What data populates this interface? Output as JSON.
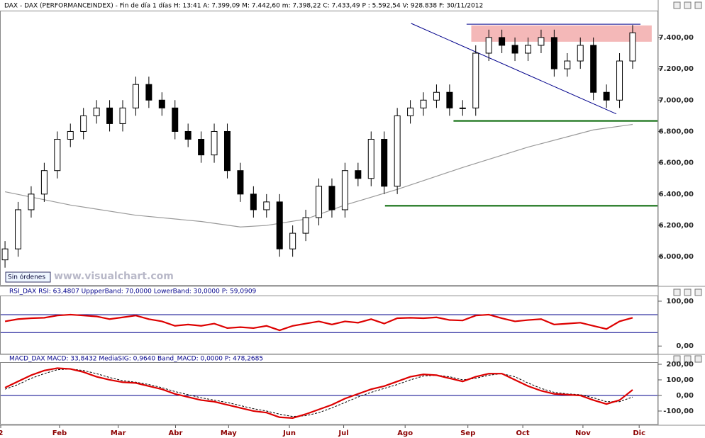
{
  "header": "DAX - DAX (PERFORMANCEINDEX) - Fin de día 1 días  H: 13:41  A: 7.399,09  M: 7.442,60  m: 7.398,22  C: 7.433,49  P : 5.592,54  V: 928.838  F: 30/11/2012",
  "status": "Sin órdenes",
  "watermark": "www.visualchart.com",
  "chart_data": [
    {
      "type": "candlestick",
      "x": [
        0,
        1,
        2,
        3,
        4,
        5,
        6,
        7,
        8,
        9,
        10,
        11,
        12,
        13,
        14,
        15,
        16,
        17,
        18,
        19,
        20,
        21,
        22,
        23,
        24,
        25,
        26,
        27,
        28,
        29,
        30,
        31,
        32,
        33,
        34,
        35,
        36,
        37,
        38,
        39,
        40,
        41,
        42,
        43,
        44,
        45,
        46,
        47,
        48
      ],
      "open": [
        5980,
        6050,
        6300,
        6400,
        6550,
        6750,
        6800,
        6900,
        6950,
        6850,
        6950,
        7100,
        7000,
        6950,
        6800,
        6750,
        6650,
        6800,
        6550,
        6400,
        6300,
        6350,
        6050,
        6150,
        6250,
        6450,
        6300,
        6550,
        6500,
        6750,
        6450,
        6900,
        6950,
        7000,
        7050,
        6950,
        6950,
        7300,
        7400,
        7350,
        7300,
        7350,
        7400,
        7200,
        7250,
        7350,
        7050,
        7000,
        7250
      ],
      "high": [
        6100,
        6350,
        6450,
        6600,
        6800,
        6850,
        6950,
        7000,
        7000,
        7000,
        7150,
        7150,
        7050,
        7000,
        6850,
        6800,
        6850,
        6850,
        6600,
        6450,
        6400,
        6400,
        6200,
        6300,
        6500,
        6500,
        6600,
        6600,
        6800,
        6800,
        6950,
        7000,
        7050,
        7100,
        7100,
        7000,
        7350,
        7450,
        7450,
        7400,
        7400,
        7450,
        7450,
        7300,
        7400,
        7400,
        7100,
        7300,
        7480
      ],
      "low": [
        5930,
        6000,
        6250,
        6350,
        6500,
        6700,
        6750,
        6850,
        6800,
        6800,
        6900,
        6950,
        6900,
        6750,
        6700,
        6600,
        6600,
        6500,
        6350,
        6250,
        6250,
        6000,
        6000,
        6100,
        6200,
        6250,
        6250,
        6450,
        6450,
        6400,
        6400,
        6850,
        6900,
        6950,
        6900,
        6900,
        6900,
        7250,
        7300,
        7250,
        7250,
        7300,
        7150,
        7150,
        7200,
        7000,
        6950,
        6950,
        7200
      ],
      "close": [
        6050,
        6300,
        6400,
        6550,
        6750,
        6800,
        6900,
        6950,
        6850,
        6950,
        7100,
        7000,
        6950,
        6800,
        6750,
        6650,
        6800,
        6550,
        6400,
        6300,
        6350,
        6050,
        6150,
        6250,
        6450,
        6300,
        6550,
        6500,
        6750,
        6450,
        6900,
        6950,
        7000,
        7050,
        6950,
        6950,
        7300,
        7400,
        7350,
        7300,
        7350,
        7400,
        7200,
        7250,
        7350,
        7050,
        7000,
        7250,
        7430
      ],
      "overlay": {
        "color": "#999999",
        "x": [
          0,
          5,
          10,
          15,
          18,
          20,
          23,
          26,
          30,
          35,
          40,
          45,
          48
        ],
        "values": [
          6415,
          6330,
          6265,
          6225,
          6190,
          6200,
          6240,
          6330,
          6430,
          6570,
          6700,
          6810,
          6845
        ]
      },
      "zone": {
        "color": "#f4b8b8",
        "x": [
          35.66,
          49.46
        ],
        "values": [
          7373,
          7477
        ]
      },
      "trendline": {
        "color": "#00008b",
        "x": [
          31.06,
          46.75
        ],
        "values": [
          7490,
          6912
        ]
      },
      "levels": [
        {
          "color": "#00008b",
          "value": 7485,
          "x": [
            35.3,
            48.6
          ]
        },
        {
          "color": "#006400",
          "value": 6867,
          "x": [
            34.3,
            49.9
          ]
        },
        {
          "color": "#006400",
          "value": 6325,
          "x": [
            29.06,
            49.9
          ]
        }
      ],
      "xlim": [
        -0.33,
        49.9
      ],
      "ylim": [
        5820,
        7567
      ],
      "yticks": [
        {
          "value": 6000,
          "label": "6.000,00"
        },
        {
          "value": 6200,
          "label": "6.200,00"
        },
        {
          "value": 6400,
          "label": "6.400,00"
        },
        {
          "value": 6600,
          "label": "6.600,00"
        },
        {
          "value": 6800,
          "label": "6.800,00"
        },
        {
          "value": 7000,
          "label": "7.000,00"
        },
        {
          "value": 7200,
          "label": "7.200,00"
        },
        {
          "value": 7400,
          "label": "7.400,00"
        }
      ]
    },
    {
      "type": "line",
      "title": "RSI_DAX  RSI: 63,4807  UppperBand: 70,0000  LowerBand: 30,0000  P: 59,0909",
      "x": [
        0,
        1,
        2,
        3,
        4,
        5,
        6,
        7,
        8,
        9,
        10,
        11,
        12,
        13,
        14,
        15,
        16,
        17,
        18,
        19,
        20,
        21,
        22,
        23,
        24,
        25,
        26,
        27,
        28,
        29,
        30,
        31,
        32,
        33,
        34,
        35,
        36,
        37,
        38,
        39,
        40,
        41,
        42,
        43,
        44,
        45,
        46,
        47,
        48
      ],
      "series": [
        {
          "color": "#dd0000",
          "values": [
            55,
            60,
            62,
            63,
            68,
            70,
            68,
            66,
            60,
            64,
            68,
            60,
            55,
            45,
            48,
            45,
            50,
            40,
            42,
            40,
            45,
            35,
            45,
            50,
            55,
            48,
            55,
            52,
            60,
            50,
            62,
            63,
            62,
            64,
            58,
            57,
            68,
            70,
            62,
            55,
            58,
            60,
            48,
            50,
            52,
            45,
            38,
            55,
            63
          ]
        }
      ],
      "levels": [
        {
          "color": "#00008b",
          "value": 70
        },
        {
          "color": "#00008b",
          "value": 30
        }
      ],
      "xlim": [
        -0.33,
        49.9
      ],
      "ylim": [
        -17,
        111
      ],
      "yticks": [
        {
          "value": 0,
          "label": "0,00"
        },
        {
          "value": 100,
          "label": "100,00"
        }
      ]
    },
    {
      "type": "line",
      "title": "MACD_DAX  MACD: 33,8432  MediaSIG: 0,9640  Band_MACD: 0,0000  P: 478,2685",
      "x": [
        0,
        1,
        2,
        3,
        4,
        5,
        6,
        7,
        8,
        9,
        10,
        11,
        12,
        13,
        14,
        15,
        16,
        17,
        18,
        19,
        20,
        21,
        22,
        23,
        24,
        25,
        26,
        27,
        28,
        29,
        30,
        31,
        32,
        33,
        34,
        35,
        36,
        37,
        38,
        39,
        40,
        41,
        42,
        43,
        44,
        45,
        46,
        47,
        48
      ],
      "series": [
        {
          "color": "#000000",
          "dashed": true,
          "values": [
            40,
            70,
            110,
            140,
            165,
            170,
            160,
            140,
            115,
            95,
            85,
            70,
            50,
            25,
            5,
            -15,
            -30,
            -45,
            -65,
            -85,
            -100,
            -120,
            -135,
            -130,
            -110,
            -80,
            -45,
            -10,
            20,
            45,
            70,
            100,
            125,
            130,
            120,
            100,
            110,
            130,
            140,
            120,
            80,
            45,
            20,
            10,
            5,
            -15,
            -40,
            -40,
            -10
          ]
        },
        {
          "color": "#dd0000",
          "values": [
            50,
            90,
            130,
            160,
            175,
            170,
            150,
            120,
            100,
            85,
            80,
            60,
            40,
            10,
            -10,
            -30,
            -40,
            -60,
            -80,
            -100,
            -110,
            -140,
            -145,
            -120,
            -90,
            -60,
            -20,
            10,
            40,
            60,
            90,
            120,
            135,
            130,
            110,
            90,
            120,
            140,
            140,
            100,
            60,
            30,
            10,
            5,
            0,
            -30,
            -55,
            -30,
            36
          ]
        }
      ],
      "levels": [
        {
          "color": "#00008b",
          "value": 0
        }
      ],
      "xlim": [
        -0.33,
        49.9
      ],
      "ylim": [
        -182,
        209
      ],
      "yticks": [
        {
          "value": -100,
          "label": "-100,00"
        },
        {
          "value": 0,
          "label": "0,00"
        },
        {
          "value": 100,
          "label": "100,00"
        },
        {
          "value": 200,
          "label": "200,00"
        }
      ],
      "xticks": [
        {
          "value": -0.33,
          "label": "2"
        },
        {
          "value": 4.17,
          "label": "Feb"
        },
        {
          "value": 8.66,
          "label": "Mar"
        },
        {
          "value": 13.04,
          "label": "Abr"
        },
        {
          "value": 17.1,
          "label": "May"
        },
        {
          "value": 21.75,
          "label": "Jun"
        },
        {
          "value": 25.9,
          "label": "Jul"
        },
        {
          "value": 30.6,
          "label": "Ago"
        },
        {
          "value": 35.4,
          "label": "Sep"
        },
        {
          "value": 39.6,
          "label": "Oct"
        },
        {
          "value": 44.2,
          "label": "Nov"
        },
        {
          "value": 48.5,
          "label": "Dic"
        }
      ]
    }
  ]
}
